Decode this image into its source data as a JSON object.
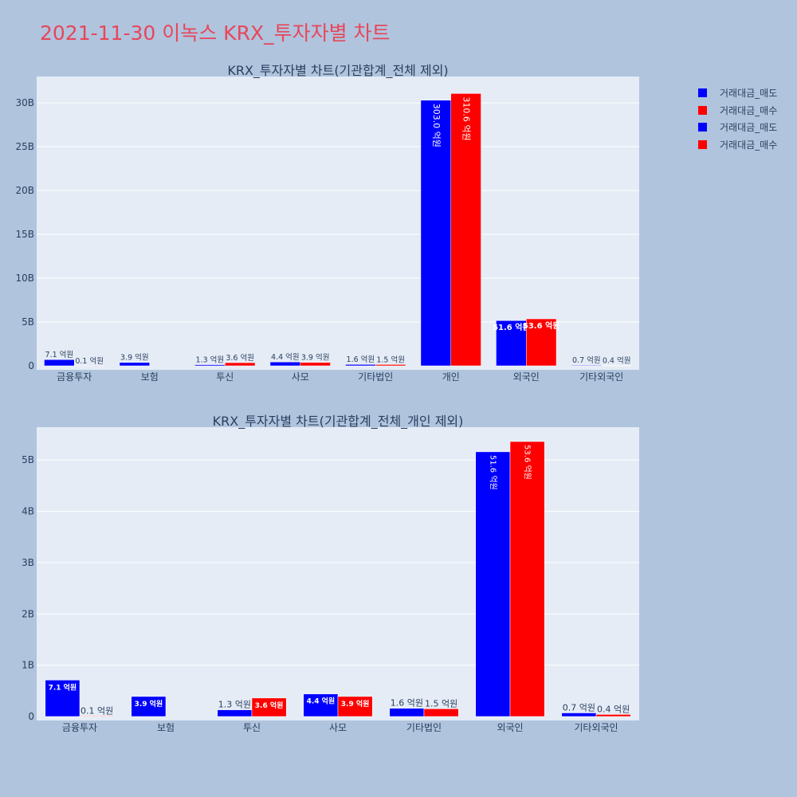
{
  "page": {
    "title": "2021-11-30 이녹스 KRX_투자자별 차트"
  },
  "legend": [
    {
      "label": "거래대금_매도",
      "color": "#0000ff"
    },
    {
      "label": "거래대금_매수",
      "color": "#ff0000"
    },
    {
      "label": "거래대금_매도",
      "color": "#0000ff"
    },
    {
      "label": "거래대금_매수",
      "color": "#ff0000"
    }
  ],
  "chart_data": [
    {
      "type": "bar",
      "title": "KRX_투자자별 차트(기관합계_전체 제외)",
      "categories": [
        "금융투자",
        "보험",
        "투신",
        "사모",
        "기타법인",
        "개인",
        "외국인",
        "기타외국인"
      ],
      "series": [
        {
          "name": "거래대금_매도",
          "color": "#0000ff",
          "values": [
            710000000,
            390000000,
            130000000,
            440000000,
            160000000,
            30300000000,
            5160000000,
            70000000
          ],
          "labels": [
            "7.1 억원",
            "3.9 억원",
            "1.3 억원",
            "4.4 억원",
            "1.6 억원",
            "303.0 억원",
            "51.6 억원",
            "0.7 억원"
          ]
        },
        {
          "name": "거래대금_매수",
          "color": "#ff0000",
          "values": [
            10000000,
            0,
            360000000,
            390000000,
            150000000,
            31060000000,
            5360000000,
            40000000
          ],
          "labels": [
            "0.1 억원",
            "",
            "3.6 억원",
            "3.9 억원",
            "1.5 억원",
            "310.6 억원",
            "53.6 억원",
            "0.4 억원"
          ]
        }
      ],
      "ylim": [
        0,
        33000000000
      ],
      "ytick_values": [
        0,
        5000000000,
        10000000000,
        15000000000,
        20000000000,
        25000000000,
        30000000000
      ],
      "ytick_labels": [
        "0",
        "5B",
        "10B",
        "15B",
        "20B",
        "25B",
        "30B"
      ],
      "grid": true
    },
    {
      "type": "bar",
      "title": "KRX_투자자별 차트(기관합계_전체_개인 제외)",
      "categories": [
        "금융투자",
        "보험",
        "투신",
        "사모",
        "기타법인",
        "외국인",
        "기타외국인"
      ],
      "series": [
        {
          "name": "거래대금_매도",
          "color": "#0000ff",
          "values": [
            710000000,
            390000000,
            130000000,
            440000000,
            160000000,
            5160000000,
            70000000
          ],
          "labels": [
            "7.1 억원",
            "3.9 억원",
            "1.3 억원",
            "4.4 억원",
            "1.6 억원",
            "51.6 억원",
            "0.7 억원"
          ]
        },
        {
          "name": "거래대금_매수",
          "color": "#ff0000",
          "values": [
            10000000,
            0,
            360000000,
            390000000,
            150000000,
            5360000000,
            40000000
          ],
          "labels": [
            "0.1 억원",
            "",
            "3.6 억원",
            "3.9 억원",
            "1.5 억원",
            "53.6 억원",
            "0.4 억원"
          ]
        }
      ],
      "ylim": [
        0,
        5640000000
      ],
      "ytick_values": [
        0,
        1000000000,
        2000000000,
        3000000000,
        4000000000,
        5000000000
      ],
      "ytick_labels": [
        "0",
        "1B",
        "2B",
        "3B",
        "4B",
        "5B"
      ],
      "grid": true
    }
  ]
}
